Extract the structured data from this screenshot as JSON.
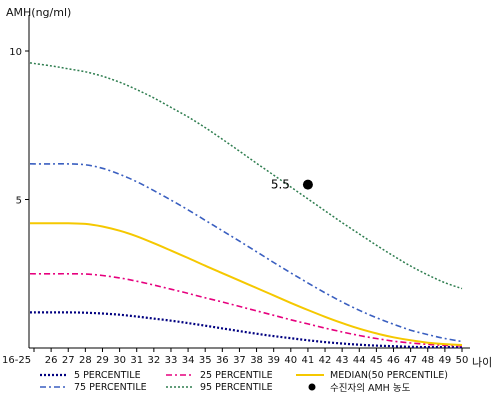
{
  "chart_data": {
    "type": "line",
    "ylabel": "AMH(ng/ml)",
    "xlabel": "나이",
    "yticks": [
      5,
      10
    ],
    "ylim": [
      0,
      11
    ],
    "xtick_labels": [
      "16-25",
      "26",
      "27",
      "28",
      "29",
      "30",
      "31",
      "32",
      "33",
      "34",
      "35",
      "36",
      "37",
      "38",
      "39",
      "40",
      "41",
      "42",
      "43",
      "44",
      "45",
      "46",
      "47",
      "48",
      "49",
      "50"
    ],
    "grid": false,
    "legend_position": "bottom",
    "series": [
      {
        "name": "5 PERCENTILE",
        "color": "#000080",
        "dash": "2,2",
        "width": 2.2,
        "values": [
          1.2,
          1.2,
          1.2,
          1.19,
          1.16,
          1.12,
          1.06,
          0.99,
          0.92,
          0.84,
          0.75,
          0.66,
          0.57,
          0.48,
          0.4,
          0.33,
          0.26,
          0.2,
          0.15,
          0.11,
          0.08,
          0.06,
          0.04,
          0.03,
          0.03,
          0.03
        ]
      },
      {
        "name": "25 PERCENTILE",
        "color": "#e6007e",
        "dash": "6,3,2,3",
        "width": 1.6,
        "values": [
          2.5,
          2.5,
          2.5,
          2.49,
          2.44,
          2.36,
          2.25,
          2.12,
          1.98,
          1.84,
          1.69,
          1.55,
          1.4,
          1.25,
          1.1,
          0.95,
          0.81,
          0.67,
          0.54,
          0.42,
          0.32,
          0.23,
          0.17,
          0.12,
          0.09,
          0.07
        ]
      },
      {
        "name": "75 PERCENTILE",
        "color": "#3a5fc0",
        "dash": "6,3,2,3",
        "width": 1.6,
        "values": [
          6.2,
          6.2,
          6.2,
          6.17,
          6.05,
          5.85,
          5.6,
          5.3,
          4.98,
          4.65,
          4.3,
          3.95,
          3.6,
          3.24,
          2.88,
          2.53,
          2.19,
          1.86,
          1.55,
          1.27,
          1.02,
          0.8,
          0.6,
          0.45,
          0.32,
          0.22
        ]
      },
      {
        "name": "MEDIAN(50 PERCENTILE)",
        "color": "#f5c800",
        "dash": "",
        "width": 2,
        "values": [
          4.2,
          4.2,
          4.2,
          4.18,
          4.09,
          3.95,
          3.76,
          3.53,
          3.28,
          3.03,
          2.77,
          2.52,
          2.27,
          2.02,
          1.77,
          1.52,
          1.28,
          1.05,
          0.84,
          0.65,
          0.49,
          0.36,
          0.26,
          0.18,
          0.13,
          0.1
        ]
      },
      {
        "name": "95 PERCENTILE",
        "color": "#2e7d4f",
        "dash": "2,2",
        "width": 1.5,
        "values": [
          9.6,
          9.5,
          9.4,
          9.3,
          9.15,
          8.95,
          8.7,
          8.42,
          8.1,
          7.78,
          7.42,
          7.03,
          6.63,
          6.22,
          5.82,
          5.42,
          5.02,
          4.62,
          4.22,
          3.84,
          3.46,
          3.1,
          2.76,
          2.46,
          2.2,
          2.0
        ]
      }
    ],
    "patient": {
      "label": "수진자의 AMH 농도",
      "x": "41",
      "value": 5.5,
      "value_label": "5.5"
    }
  }
}
